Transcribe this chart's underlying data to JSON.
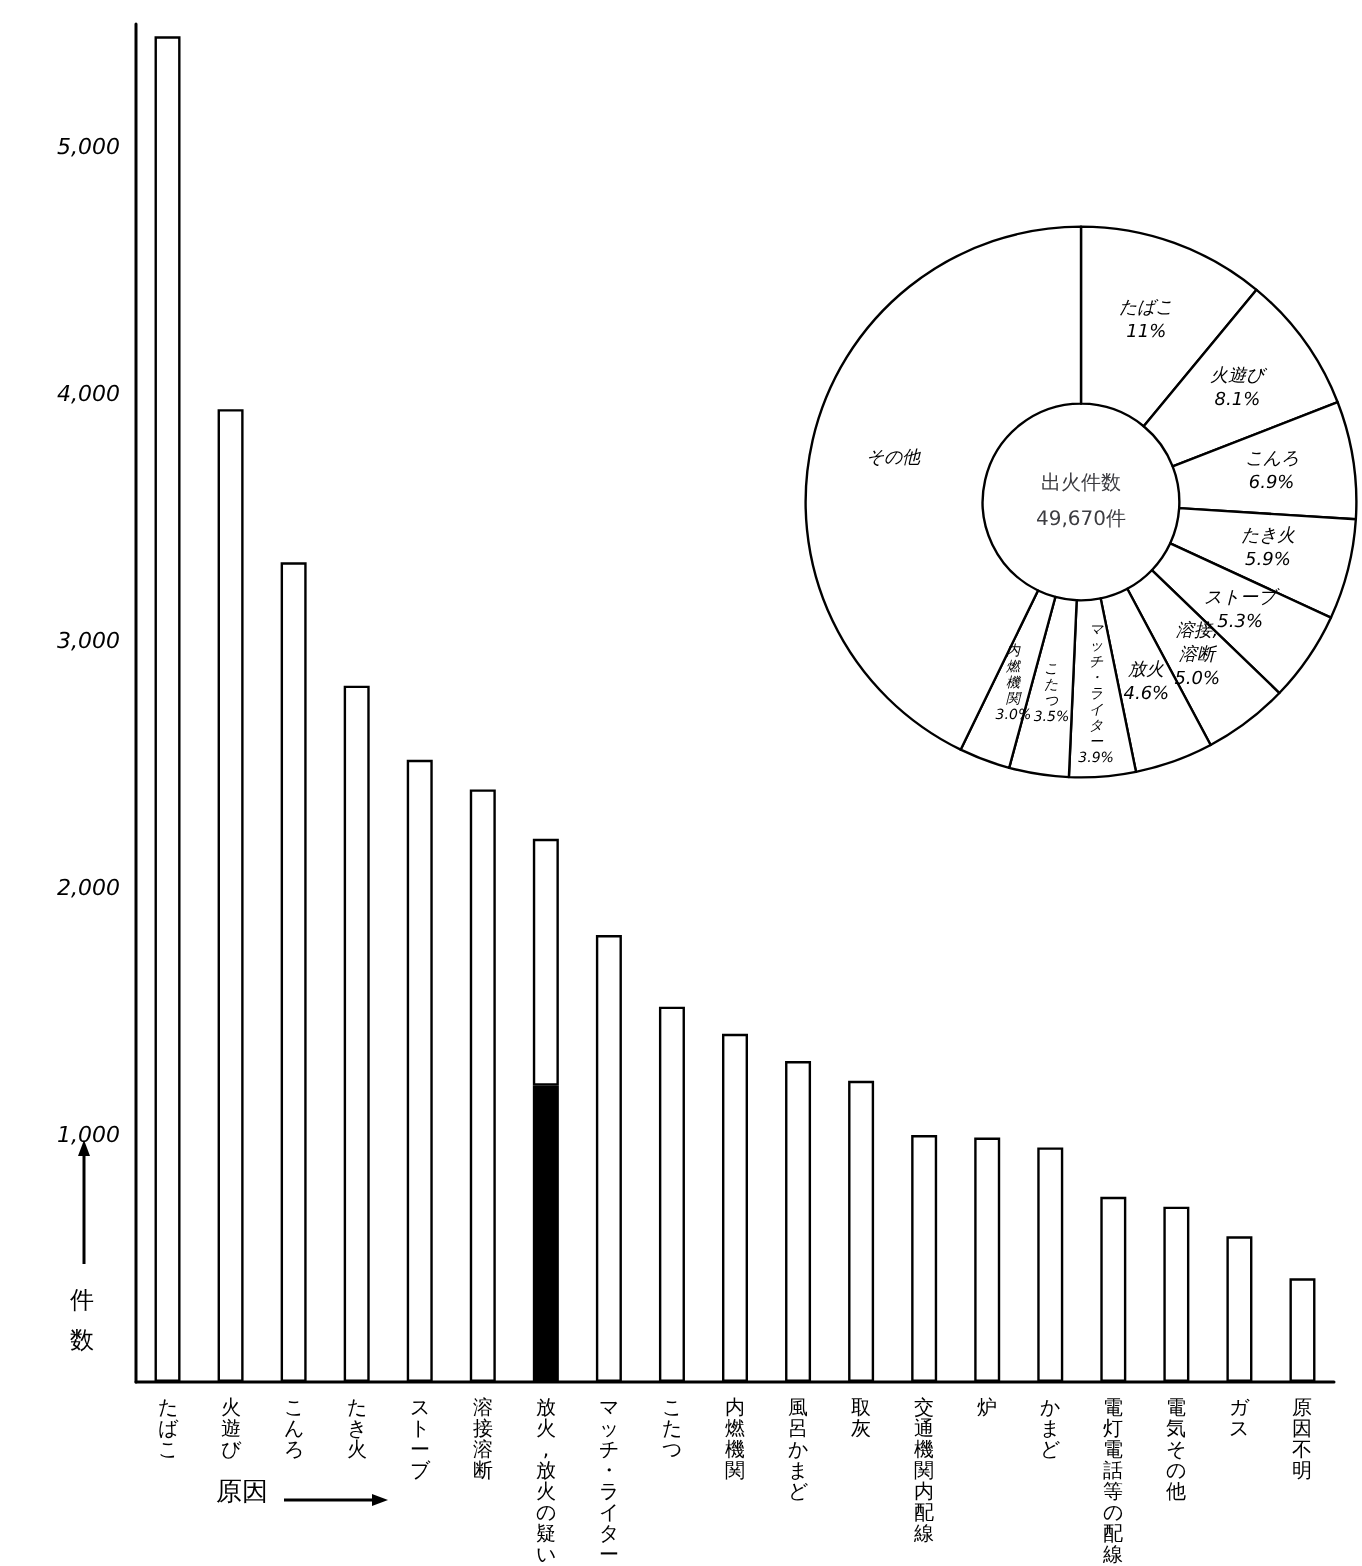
{
  "chart_data": [
    {
      "type": "bar",
      "xlabel": "原因",
      "ylabel": "件数",
      "categories": [
        "たばこ",
        "火遊び",
        "こんろ",
        "たき火",
        "ストーブ",
        "溶接溶断",
        "放火,放火の疑い",
        "マッチ・ライター",
        "こたつ",
        "内燃機関",
        "風呂かまど",
        "取灰",
        "交通機関内配線",
        "炉",
        "かまど",
        "電灯電話等の配線",
        "電気その他",
        "ガス",
        "原因不明"
      ],
      "stacked": true,
      "series": [
        {
          "color": "#000000",
          "values": [
            null,
            null,
            null,
            null,
            null,
            null,
            1200,
            null,
            null,
            null,
            null,
            null,
            null,
            null,
            null,
            null,
            null,
            null,
            null
          ]
        },
        {
          "color": "#ffffff",
          "values": [
            5450,
            3940,
            3320,
            2820,
            2520,
            2400,
            1000,
            1810,
            1520,
            1410,
            1300,
            1220,
            1000,
            990,
            950,
            750,
            710,
            590,
            420
          ]
        }
      ],
      "ylim": [
        0,
        5500
      ],
      "yticks": [
        {
          "value": 1000,
          "label": "1,000"
        },
        {
          "value": 2000,
          "label": "2,000"
        },
        {
          "value": 3000,
          "label": "3,000"
        },
        {
          "value": 4000,
          "label": "4,000"
        },
        {
          "value": 5000,
          "label": "5,000"
        }
      ],
      "grid": false,
      "legend": false
    },
    {
      "type": "donut",
      "title": "出火件数 49,670件",
      "categories": [
        "たばこ",
        "火遊び",
        "こんろ",
        "たき火",
        "ストーブ",
        "溶接, 溶断",
        "放火",
        "マッチ・ライター",
        "こたつ",
        "内燃機関",
        "その他"
      ],
      "values": [
        11,
        8.1,
        6.9,
        5.9,
        5.3,
        5.0,
        4.6,
        3.9,
        3.5,
        3.0,
        42.8
      ],
      "value_labels": [
        "11%",
        "8.1%",
        "6.9%",
        "5.9%",
        "5.3%",
        "5.0%",
        "4.6%",
        "3.9%",
        "3.5%",
        "3.0%",
        null
      ],
      "colors": [
        "#ffffff",
        "#ffffff",
        "#ffffff",
        "#ffffff",
        "#ffffff",
        "#ffffff",
        "#ffffff",
        "#ffffff",
        "#ffffff",
        "#ffffff",
        "#ffffff"
      ],
      "legend": false
    }
  ]
}
